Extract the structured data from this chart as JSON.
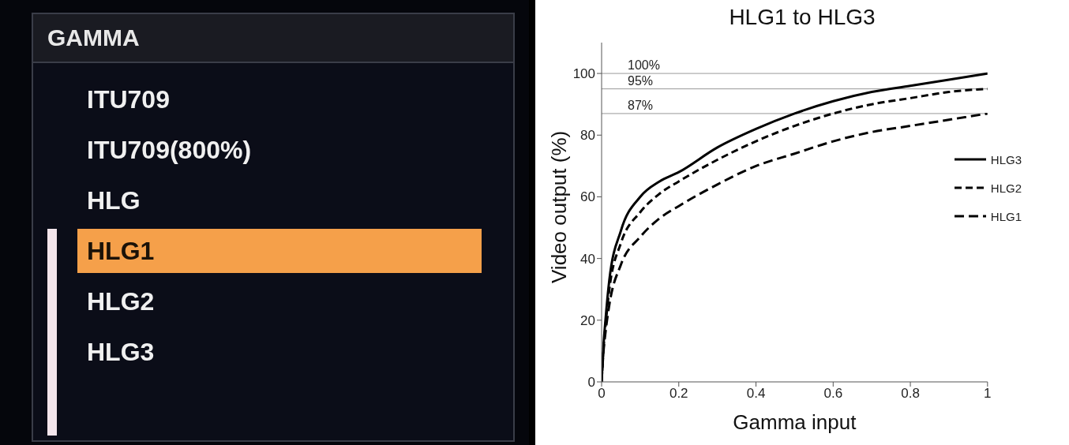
{
  "chart_data": [
    {
      "type": "other",
      "title": "GAMMA",
      "categories": [
        "ITU709",
        "ITU709(800%)",
        "HLG",
        "HLG1",
        "HLG2",
        "HLG3"
      ],
      "colors": [
        null,
        null,
        null,
        "#f5a04a",
        null,
        null
      ]
    },
    {
      "type": "line",
      "title": "HLG1 to HLG3",
      "xlabel": "Gamma input",
      "ylabel": "Video output (%)",
      "x": [
        0,
        0.005,
        0.01,
        0.02,
        0.05,
        0.1,
        0.15,
        0.2,
        0.3,
        0.4,
        0.5,
        0.6,
        0.7,
        0.8,
        0.9,
        1
      ],
      "series": [
        {
          "name": "HLG3",
          "color": "#000000",
          "line_style": "solid",
          "values": [
            0,
            12,
            20,
            33,
            49,
            60,
            65,
            68,
            76,
            82,
            87,
            91,
            94,
            96,
            98,
            100
          ]
        },
        {
          "name": "HLG2",
          "color": "#000000",
          "line_style": "dashed",
          "values": [
            0,
            11,
            18,
            30,
            45,
            55,
            61,
            65,
            72,
            78,
            83,
            87,
            90,
            92,
            94,
            95
          ]
        },
        {
          "name": "HLG1",
          "color": "#000000",
          "line_style": "dashed",
          "values": [
            0,
            10,
            16,
            25,
            38,
            47,
            53,
            57,
            64,
            70,
            74,
            78,
            81,
            83,
            85,
            87
          ]
        }
      ],
      "xlim": [
        0,
        1
      ],
      "xticks": [
        0,
        0.2,
        0.4,
        0.6,
        0.8,
        1
      ],
      "ylim": [
        0,
        110
      ],
      "yticks": [
        0,
        20,
        40,
        60,
        80,
        100
      ],
      "ref_lines": [
        {
          "axis": "y",
          "value": 100,
          "label": "100%",
          "color": "#999999"
        },
        {
          "axis": "y",
          "value": 95,
          "label": "95%",
          "color": "#999999"
        },
        {
          "axis": "y",
          "value": 87,
          "label": "87%",
          "color": "#999999"
        }
      ],
      "legend": "right",
      "marker": "none",
      "grid": false
    }
  ]
}
